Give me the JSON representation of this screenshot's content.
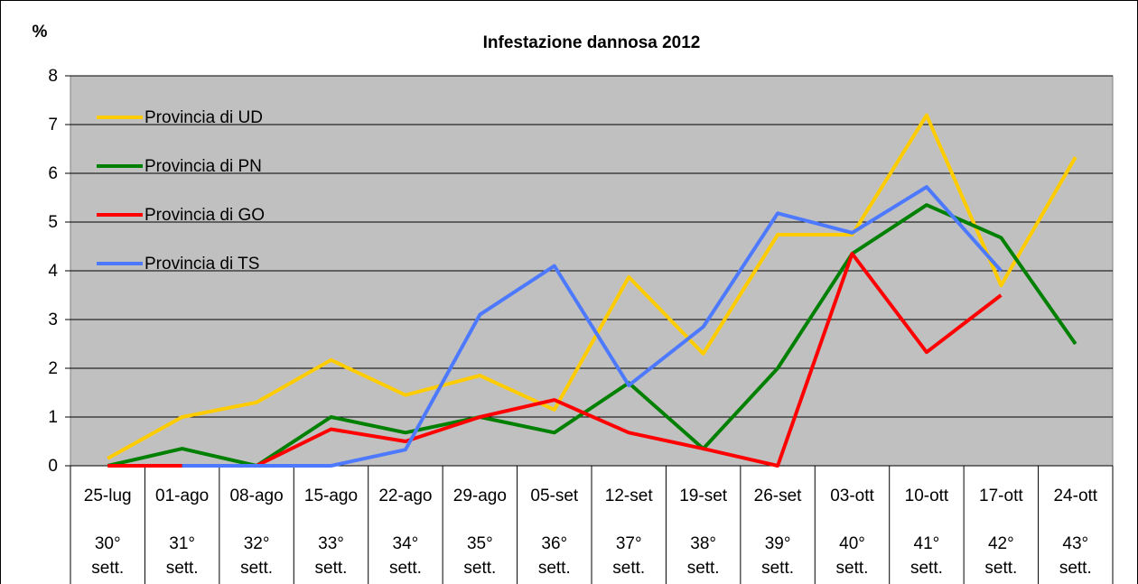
{
  "chart_data": {
    "type": "line",
    "title": "Infestazione dannosa 2012",
    "y_label": "%",
    "categories": [
      [
        "25-lug",
        "30°",
        "sett."
      ],
      [
        "01-ago",
        "31°",
        "sett."
      ],
      [
        "08-ago",
        "32°",
        "sett."
      ],
      [
        "15-ago",
        "33°",
        "sett."
      ],
      [
        "22-ago",
        "34°",
        "sett."
      ],
      [
        "29-ago",
        "35°",
        "sett."
      ],
      [
        "05-set",
        "36°",
        "sett."
      ],
      [
        "12-set",
        "37°",
        "sett."
      ],
      [
        "19-set",
        "38°",
        "sett."
      ],
      [
        "26-set",
        "39°",
        "sett."
      ],
      [
        "03-ott",
        "40°",
        "sett."
      ],
      [
        "10-ott",
        "41°",
        "sett."
      ],
      [
        "17-ott",
        "42°",
        "sett."
      ],
      [
        "24-ott",
        "43°",
        "sett."
      ]
    ],
    "series": [
      {
        "name": "Provincia di UD",
        "color": "#ffcc00",
        "values": [
          0.15,
          1.0,
          1.3,
          2.17,
          1.45,
          1.85,
          1.15,
          3.87,
          2.3,
          4.74,
          4.74,
          7.19,
          3.7,
          6.33
        ]
      },
      {
        "name": "Provincia di PN",
        "color": "#008000",
        "values": [
          0,
          0.35,
          0,
          1.0,
          0.68,
          1.0,
          0.68,
          1.7,
          0.35,
          2.0,
          4.35,
          5.35,
          4.68,
          2.5
        ]
      },
      {
        "name": "Provincia di GO",
        "color": "#ff0000",
        "values": [
          0,
          0,
          0,
          0.75,
          0.5,
          1.0,
          1.35,
          0.68,
          0.35,
          0,
          4.35,
          2.33,
          3.5,
          null
        ]
      },
      {
        "name": "Provincia di TS",
        "color": "#4d79ff",
        "values": [
          null,
          0,
          0,
          0,
          0.33,
          3.1,
          4.1,
          1.65,
          2.85,
          5.18,
          4.78,
          5.72,
          4.0,
          null
        ]
      }
    ],
    "ylim": [
      0,
      8
    ],
    "yticks": [
      0,
      1,
      2,
      3,
      4,
      5,
      6,
      7,
      8
    ],
    "grid": true,
    "legend": "top-left",
    "plot_background": "#c0c0c0"
  }
}
